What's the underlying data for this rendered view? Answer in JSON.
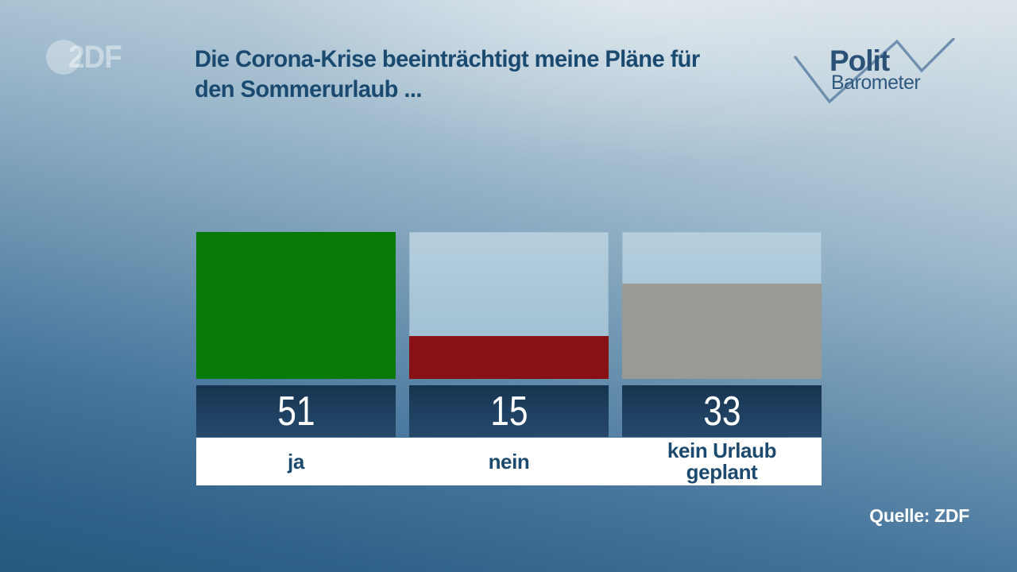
{
  "header": {
    "broadcaster_logo_text": "2DF",
    "title_line1": "Die Corona-Krise beeinträchtigt meine Pläne für",
    "title_line2": "den Sommerurlaub ...",
    "program_logo": {
      "word1": "Polit",
      "word2": "Barometer"
    }
  },
  "chart_data": {
    "type": "bar",
    "title": "Die Corona-Krise beeinträchtigt meine Pläne für den Sommerurlaub ...",
    "categories": [
      "ja",
      "nein",
      "kein Urlaub geplant"
    ],
    "values": [
      51,
      15,
      33
    ],
    "value_labels": [
      "51",
      "15",
      "33"
    ],
    "unit": "percent of respondents",
    "axis_scale_max": 51,
    "bar_colors": [
      "#077b06",
      "#871114",
      "#999995"
    ],
    "empty_cell_color": "#a5c4d6",
    "value_band_color": "#1d3f5f",
    "label_band_color": "#ffffff",
    "legend_position": "none",
    "grid": false
  },
  "footer": {
    "source": "Quelle: ZDF"
  },
  "colors": {
    "title_text": "#1b4a70",
    "value_text": "#ffffff",
    "background_top": "#dde5ea",
    "background_bottom": "#265a80",
    "logo_line": "#5e82a4"
  }
}
